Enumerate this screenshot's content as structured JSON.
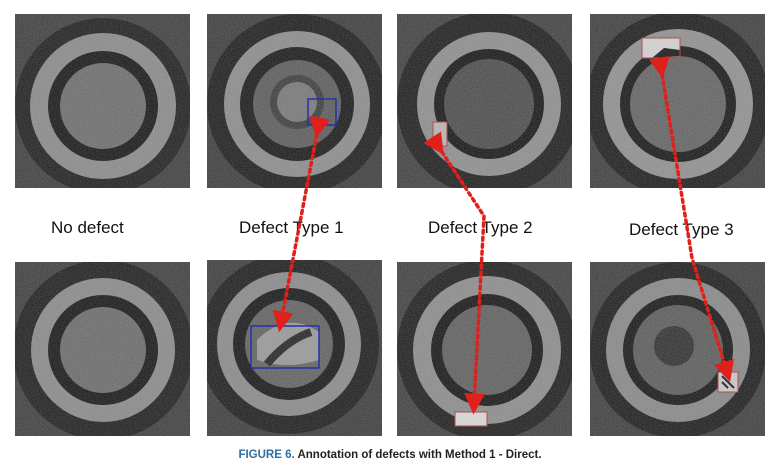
{
  "labels": {
    "no_defect": "No defect",
    "type1": "Defect Type 1",
    "type2": "Defect Type 2",
    "type3": "Defect Type 3"
  },
  "caption": {
    "figure": "FIGURE 6.",
    "text": "Annotation of defects with Method 1 - Direct."
  },
  "colors": {
    "arrow": "#e0201a",
    "box_blue": "#2233aa",
    "box_red": "#b05050"
  }
}
